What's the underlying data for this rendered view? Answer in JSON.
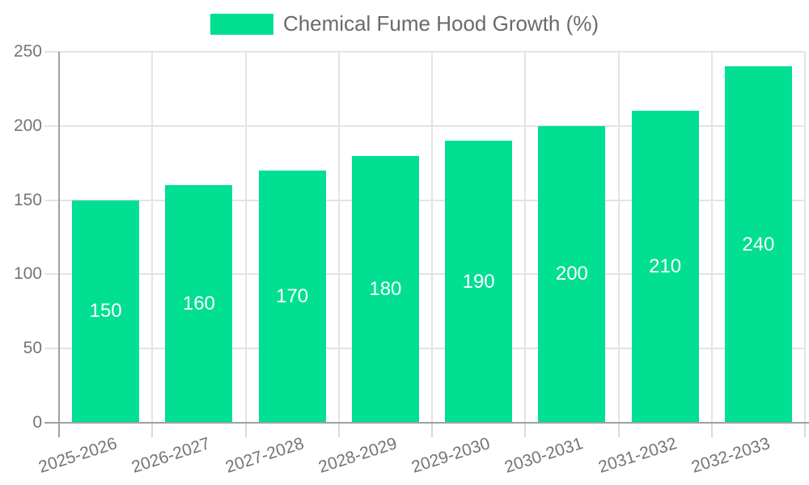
{
  "chart_data": {
    "type": "bar",
    "title": "Chemical Fume Hood Growth (%)",
    "categories": [
      "2025-2026",
      "2026-2027",
      "2027-2028",
      "2028-2029",
      "2029-2030",
      "2030-2031",
      "2031-2032",
      "2032-2033"
    ],
    "values": [
      150,
      160,
      170,
      180,
      190,
      200,
      210,
      240
    ],
    "xlabel": "",
    "ylabel": "",
    "ylim": [
      0,
      250
    ],
    "ytick_step": 50,
    "ytick_labels": [
      "0",
      "50",
      "100",
      "150",
      "200",
      "250"
    ],
    "grid": true,
    "legend_position": "top-center",
    "value_labels": "inside-center",
    "x_label_rotation_deg": 18
  },
  "legend": {
    "series_label": "Chemical Fume Hood Growth (%)"
  },
  "colors": {
    "bar": "#00DF92",
    "grid": "#E4E4E4",
    "tick": "#D9D9D9",
    "axis": "#A0A0A0",
    "tick_text": "#757575",
    "legend_text": "#6A6A6A",
    "value_text": "#FFFFFF"
  }
}
